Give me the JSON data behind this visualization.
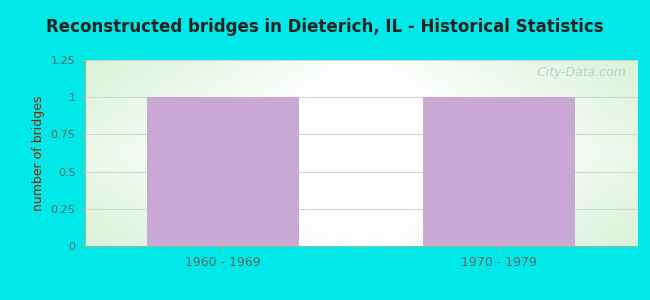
{
  "title": "Reconstructed bridges in Dieterich, IL - Historical Statistics",
  "categories": [
    "1960 - 1969",
    "1970 - 1979"
  ],
  "values": [
    1,
    1
  ],
  "bar_color": "#c9a8d4",
  "ylabel": "number of bridges",
  "ylim": [
    0,
    1.25
  ],
  "yticks": [
    0,
    0.25,
    0.5,
    0.75,
    1,
    1.25
  ],
  "background_outer": "#00e8e8",
  "title_color": "#222222",
  "label_color": "#666666",
  "ylabel_color": "#8b2500",
  "watermark": "  City-Data.com",
  "watermark_color": "#b0c8cc",
  "grid_color": "#c8ddc8",
  "spine_color": "#99bb99"
}
